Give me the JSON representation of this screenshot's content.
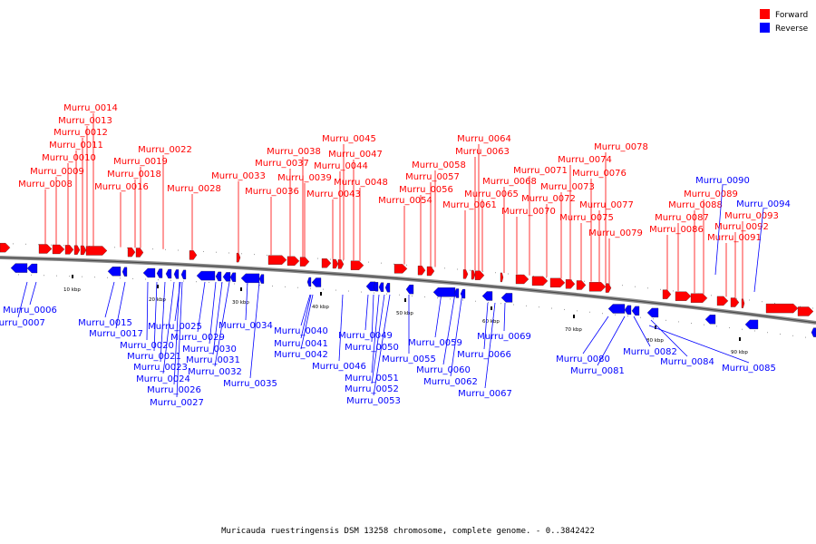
{
  "caption": "Muricauda ruestringensis DSM 13258 chromosome, complete genome. - 0..3842422",
  "legend": [
    {
      "label": "Forward",
      "color": "#ff0000"
    },
    {
      "label": "Reverse",
      "color": "#0000ff"
    }
  ],
  "tick_labels": [
    "10 kbp",
    "20 kbp",
    "30 kbp",
    "40 kbp",
    "50 kbp",
    "60 kbp",
    "70 kbp",
    "80 kbp",
    "90 kbp"
  ],
  "forward_genes": [
    "Murru_0008",
    "Murru_0009",
    "Murru_0010",
    "Murru_0011",
    "Murru_0012",
    "Murru_0013",
    "Murru_0014",
    "Murru_0016",
    "Murru_0018",
    "Murru_0019",
    "Murru_0022",
    "Murru_0028",
    "Murru_0033",
    "Murru_0036",
    "Murru_0037",
    "Murru_0038",
    "Murru_0039",
    "Murru_0043",
    "Murru_0044",
    "Murru_0045",
    "Murru_0047",
    "Murru_0048",
    "Murru_0054",
    "Murru_0056",
    "Murru_0057",
    "Murru_0058",
    "Murru_0061",
    "Murru_0063",
    "Murru_0064",
    "Murru_0065",
    "Murru_0068",
    "Murru_0070",
    "Murru_0071",
    "Murru_0072",
    "Murru_0073",
    "Murru_0074",
    "Murru_0075",
    "Murru_0076",
    "Murru_0077",
    "Murru_0078",
    "Murru_0079",
    "Murru_0086",
    "Murru_0087",
    "Murru_0088",
    "Murru_0089",
    "Murru_0091",
    "Murru_0092",
    "Murru_0093"
  ],
  "reverse_genes": [
    "Murru_0006",
    "Murru_0007",
    "Murru_0015",
    "Murru_0017",
    "Murru_0020",
    "Murru_0021",
    "Murru_0023",
    "Murru_0024",
    "Murru_0025",
    "Murru_0026",
    "Murru_0027",
    "Murru_0029",
    "Murru_0030",
    "Murru_0031",
    "Murru_0032",
    "Murru_0034",
    "Murru_0035",
    "Murru_0040",
    "Murru_0041",
    "Murru_0042",
    "Murru_0046",
    "Murru_0049",
    "Murru_0050",
    "Murru_0051",
    "Murru_0052",
    "Murru_0053",
    "Murru_0055",
    "Murru_0059",
    "Murru_0060",
    "Murru_0062",
    "Murru_0066",
    "Murru_0067",
    "Murru_0069",
    "Murru_0080",
    "Murru_0081",
    "Murru_0082",
    "Murru_0084",
    "Murru_0085",
    "Murru_0090",
    "Murru_0094"
  ]
}
